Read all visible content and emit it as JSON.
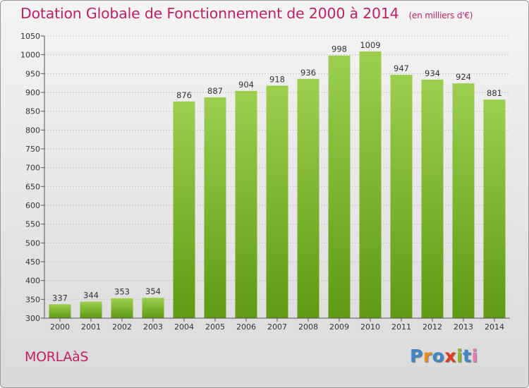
{
  "header": {
    "title": "Dotation Globale de Fonctionnement de 2000 à 2014",
    "unit": "(en milliers d'€)"
  },
  "footer": {
    "place": "MORLAàS",
    "logo_text": "Proxiti"
  },
  "colors": {
    "title": "#c02066",
    "bar_top": "#9ccf4e",
    "bar_bottom": "#5f9a12",
    "grid": "#c7c7c7",
    "logo_letters": [
      "#3f86c6",
      "#ec8a1c",
      "#3f86c6",
      "#e63a1f",
      "#8cb82a",
      "#3f86c6",
      "#e87bb1"
    ]
  },
  "chart_data": {
    "type": "bar",
    "title": "Dotation Globale de Fonctionnement de 2000 à 2014",
    "subtitle": "(en milliers d'€)",
    "categories": [
      "2000",
      "2001",
      "2002",
      "2003",
      "2004",
      "2005",
      "2006",
      "2007",
      "2008",
      "2009",
      "2010",
      "2011",
      "2012",
      "2013",
      "2014"
    ],
    "values": [
      337,
      344,
      353,
      354,
      876,
      887,
      904,
      918,
      936,
      998,
      1009,
      947,
      934,
      924,
      881
    ],
    "data_labels": [
      "337",
      "344",
      "353",
      "354",
      "876",
      "887",
      "904",
      "918",
      "936",
      "998",
      "1009",
      "947",
      "934",
      "924",
      "881"
    ],
    "ylim": [
      300,
      1050
    ],
    "yticks": [
      300,
      350,
      400,
      450,
      500,
      550,
      600,
      650,
      700,
      750,
      800,
      850,
      900,
      950,
      1000,
      1050
    ],
    "ytick_labels": [
      "300",
      "350",
      "400",
      "450",
      "500",
      "550",
      "600",
      "650",
      "700",
      "750",
      "800",
      "850",
      "900",
      "950",
      "1000",
      "1050"
    ],
    "xlabel": "",
    "ylabel": "",
    "grid": true
  }
}
